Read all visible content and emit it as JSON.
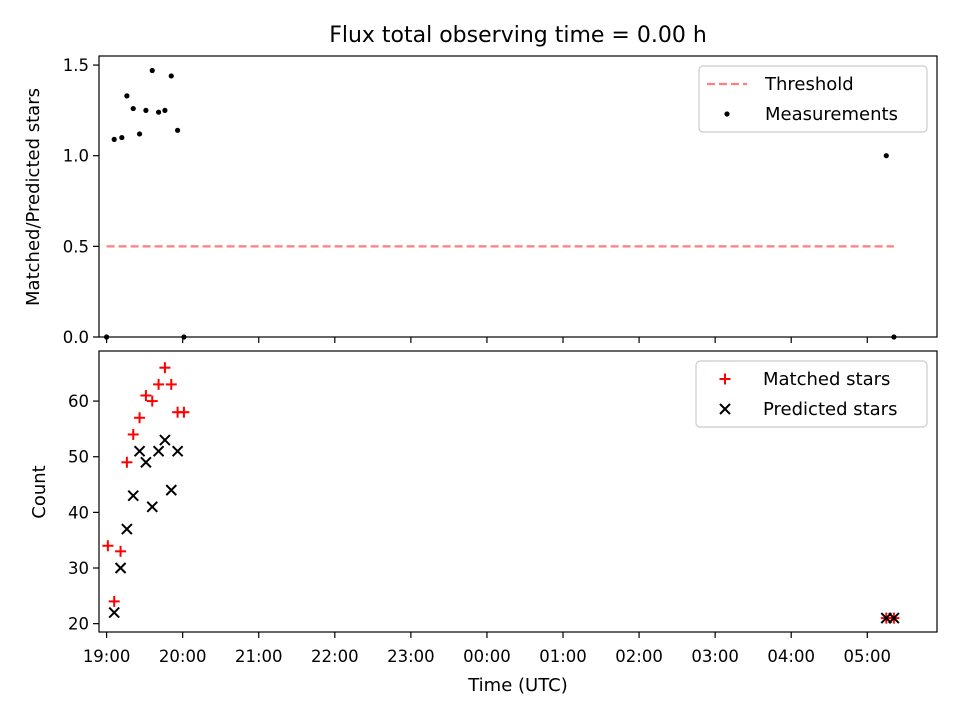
{
  "title": "Flux total observing time = 0.00 h",
  "xlabel": "Time (UTC)",
  "x_tick_labels": [
    "19:00",
    "20:00",
    "21:00",
    "22:00",
    "23:00",
    "00:00",
    "01:00",
    "02:00",
    "03:00",
    "04:00",
    "05:00"
  ],
  "colors": {
    "threshold": "#ff7f7f",
    "measurements": "#000000",
    "matched": "#ff0000",
    "predicted": "#000000"
  },
  "chart_data": [
    {
      "type": "scatter",
      "ylabel": "Matched/Predicted stars",
      "xlim": [
        "18:54",
        "05:55"
      ],
      "ylim": [
        0,
        1.55
      ],
      "yticks": [
        0.0,
        0.5,
        1.0,
        1.5
      ],
      "ytick_labels": [
        "0.0",
        "0.5",
        "1.0",
        "1.5"
      ],
      "legend_position": "top-right",
      "series": [
        {
          "name": "Threshold",
          "style": "dashed-line",
          "points": [
            [
              "19:00",
              0.5
            ],
            [
              "05:21",
              0.5
            ]
          ]
        },
        {
          "name": "Measurements",
          "style": "dot",
          "points": [
            [
              "19:00",
              0.0
            ],
            [
              "19:06",
              1.09
            ],
            [
              "19:12",
              1.1
            ],
            [
              "19:16",
              1.33
            ],
            [
              "19:21",
              1.26
            ],
            [
              "19:26",
              1.12
            ],
            [
              "19:31",
              1.25
            ],
            [
              "19:36",
              1.47
            ],
            [
              "19:41",
              1.24
            ],
            [
              "19:46",
              1.25
            ],
            [
              "19:51",
              1.44
            ],
            [
              "19:56",
              1.14
            ],
            [
              "20:01",
              0.0
            ],
            [
              "05:15",
              1.0
            ],
            [
              "05:21",
              0.0
            ]
          ]
        }
      ]
    },
    {
      "type": "scatter",
      "ylabel": "Count",
      "xlim": [
        "18:54",
        "05:55"
      ],
      "ylim": [
        18.5,
        69
      ],
      "yticks": [
        20,
        30,
        40,
        50,
        60
      ],
      "ytick_labels": [
        "20",
        "30",
        "40",
        "50",
        "60"
      ],
      "legend_position": "top-right",
      "series": [
        {
          "name": "Matched stars",
          "style": "plus",
          "points": [
            [
              "19:01",
              34
            ],
            [
              "19:06",
              24
            ],
            [
              "19:11",
              33
            ],
            [
              "19:16",
              49
            ],
            [
              "19:21",
              54
            ],
            [
              "19:26",
              57
            ],
            [
              "19:31",
              61
            ],
            [
              "19:36",
              60
            ],
            [
              "19:41",
              63
            ],
            [
              "19:46",
              66
            ],
            [
              "19:51",
              63
            ],
            [
              "19:56",
              58
            ],
            [
              "20:01",
              58
            ],
            [
              "05:15",
              21
            ],
            [
              "05:21",
              21
            ]
          ]
        },
        {
          "name": "Predicted stars",
          "style": "x",
          "points": [
            [
              "19:06",
              22
            ],
            [
              "19:11",
              30
            ],
            [
              "19:16",
              37
            ],
            [
              "19:21",
              43
            ],
            [
              "19:26",
              51
            ],
            [
              "19:31",
              49
            ],
            [
              "19:36",
              41
            ],
            [
              "19:41",
              51
            ],
            [
              "19:46",
              53
            ],
            [
              "19:51",
              44
            ],
            [
              "19:56",
              51
            ],
            [
              "05:15",
              21
            ],
            [
              "05:21",
              21
            ]
          ]
        }
      ]
    }
  ]
}
